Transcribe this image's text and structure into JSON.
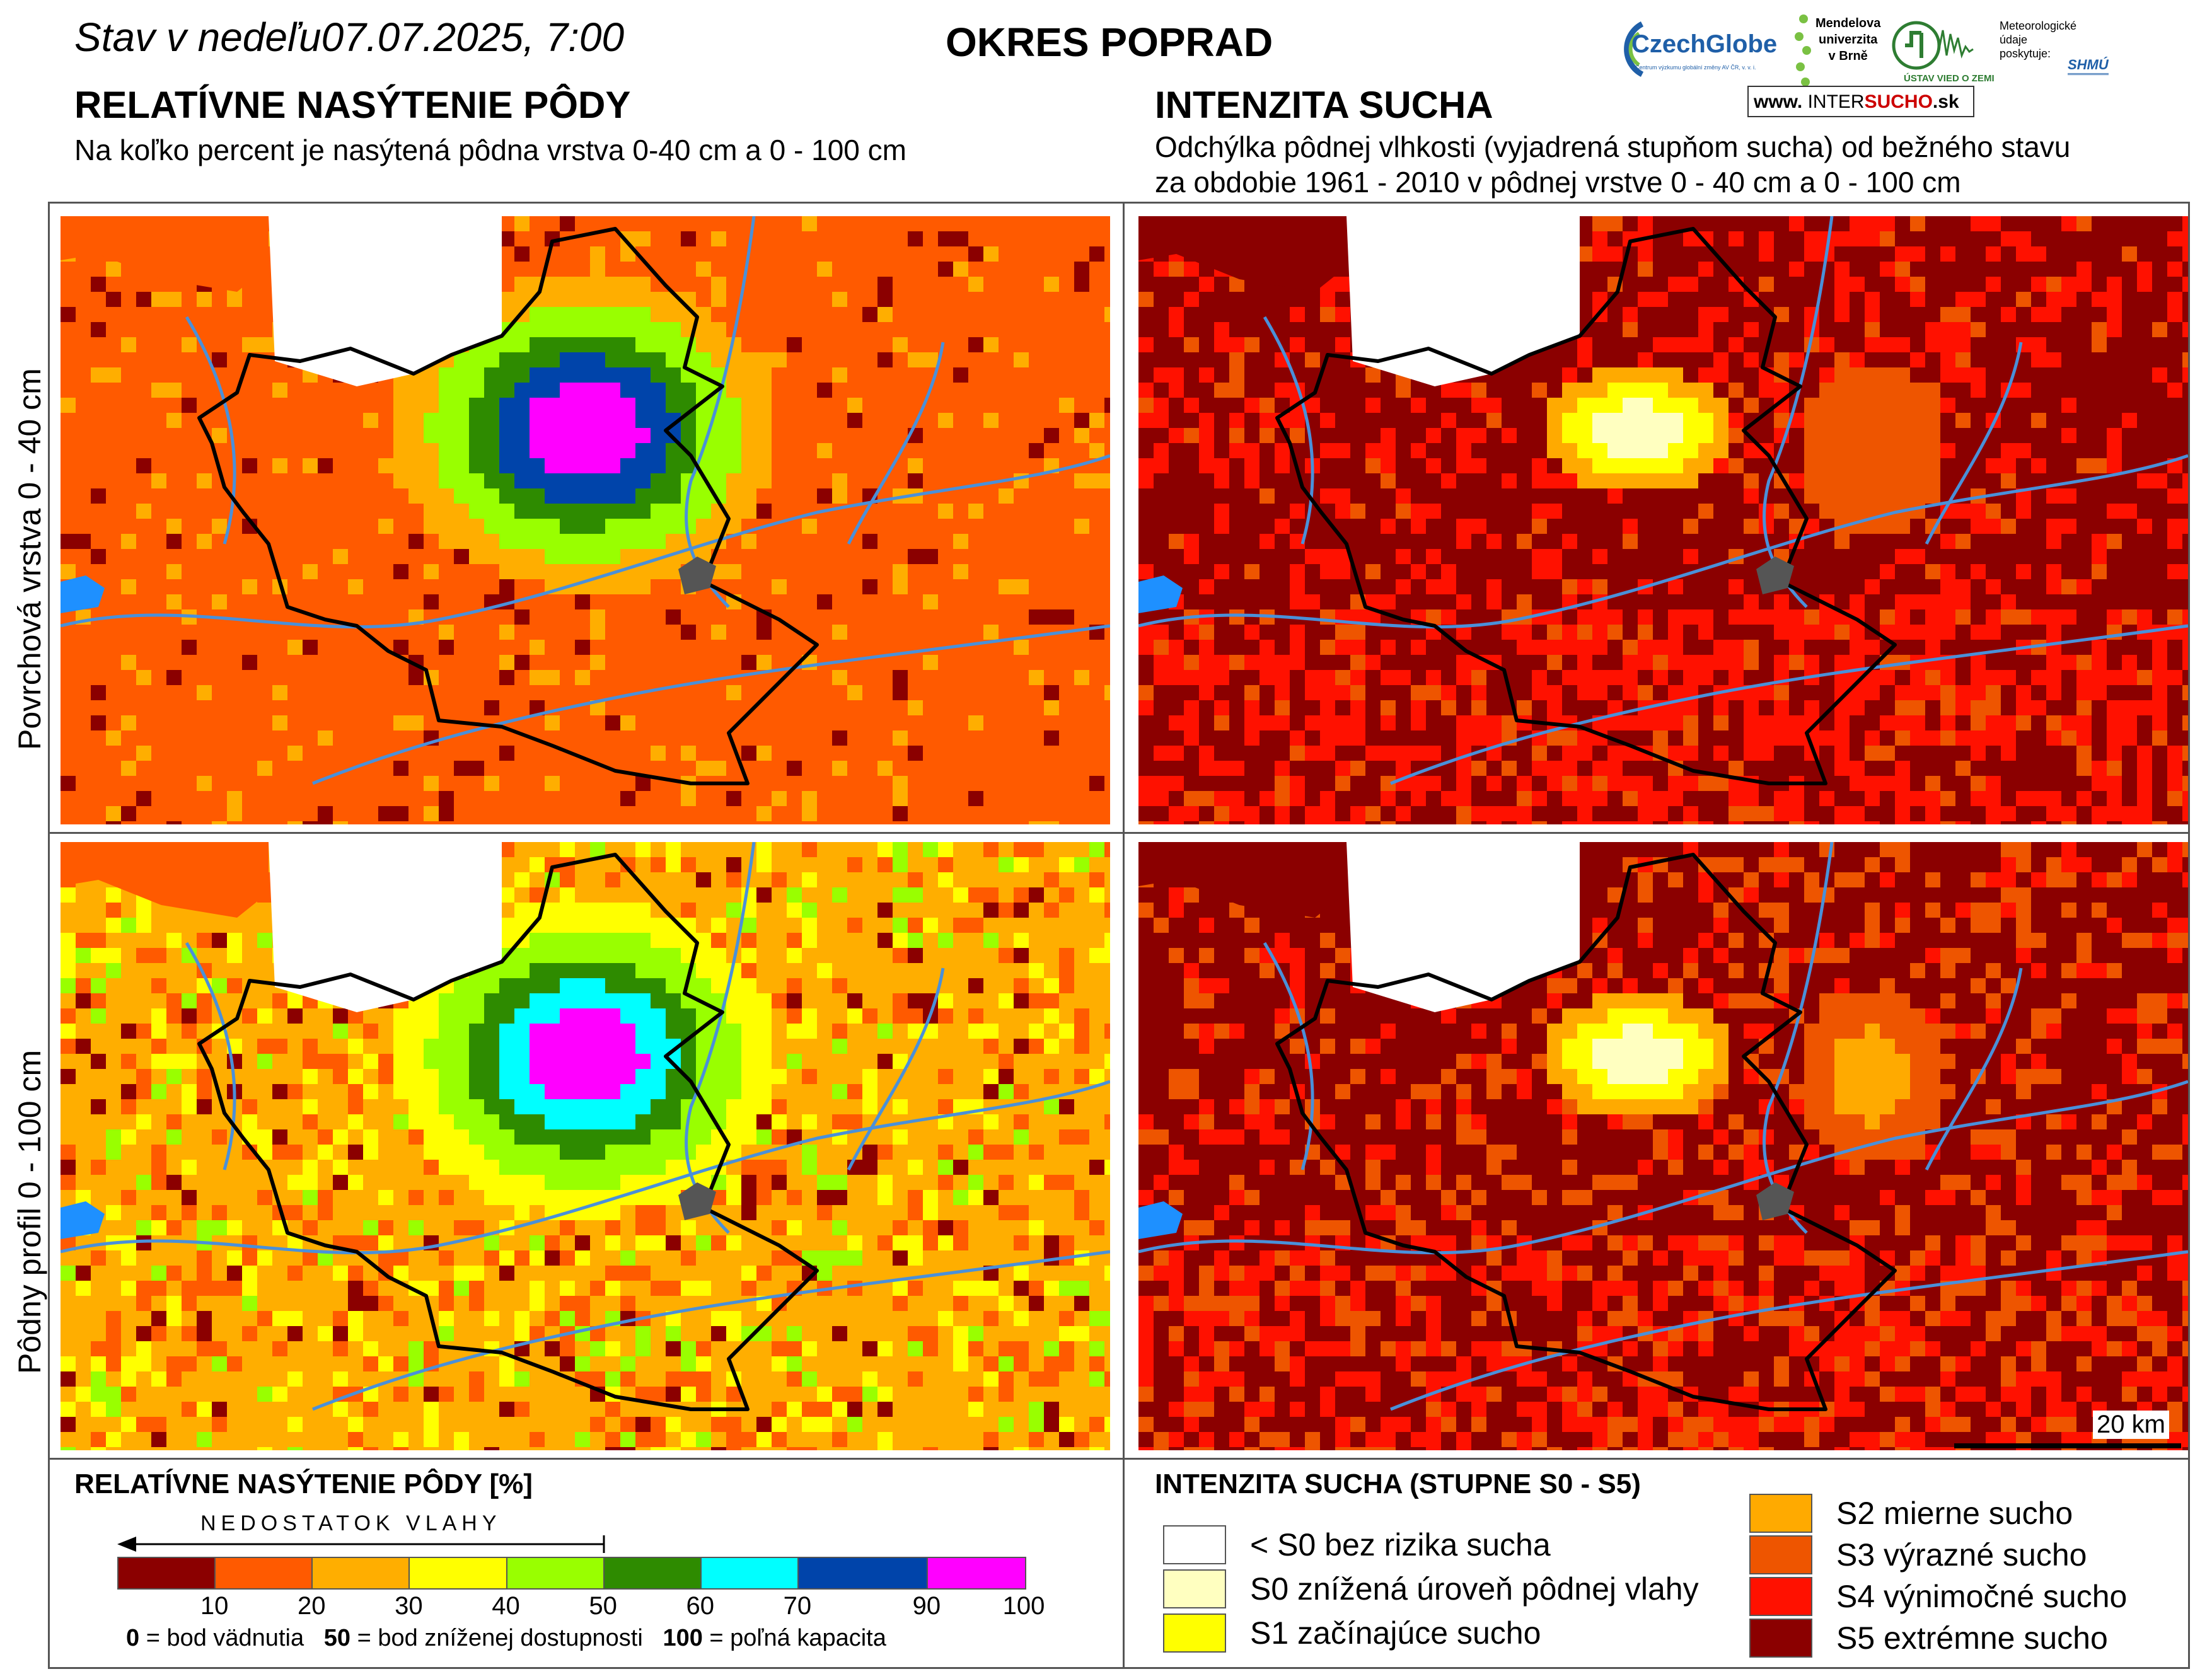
{
  "header": {
    "status_prefix": "Stav v nedeľu",
    "date_time": "07.07.2025, 7:00",
    "district": "OKRES  POPRAD"
  },
  "logos": {
    "czechglobe": "CzechGlobe",
    "czechglobe_sub": "Centrum výzkumu globální změny AV ČR, v. v. i.",
    "mendelu_lines": [
      "Mendelova",
      "univerzita",
      "v Brně"
    ],
    "ustav": "ÚSTAV VIED O ZEMI",
    "meteo_lines": [
      "Meteorologické",
      "údaje",
      "poskytuje:"
    ],
    "shmu": "SHMÚ",
    "intersucho_prefix": "www.",
    "intersucho_a": "INTER",
    "intersucho_b": "SUCHO",
    "intersucho_suffix": ".sk"
  },
  "left_section": {
    "title": "RELATÍVNE NASÝTENIE PÔDY",
    "subtitle": "Na koľko percent je nasýtená pôdna vrstva 0-40 cm a 0 - 100 cm"
  },
  "right_section": {
    "title": "INTENZITA SUCHA",
    "subtitle_line1": "Odchýlka pôdnej vlhkosti (vyjadrená stupňom sucha) od bežného stavu",
    "subtitle_line2": "za obdobie 1961 - 2010 v pôdnej vrstve 0 - 40 cm a 0 - 100 cm"
  },
  "rows": {
    "top_label": "Povrchová vrstva 0 - 40 cm",
    "bottom_label": "Pôdny profil 0 - 100 cm"
  },
  "scale_bar": "20 km",
  "saturation_legend": {
    "title": "RELATÍVNE NASÝTENIE PÔDY [%]",
    "arrow_label": "NEDOSTATOK  VLAHY",
    "colors": [
      "#8b0000",
      "#ff5a00",
      "#ffae00",
      "#ffff00",
      "#99ff00",
      "#2e8b00",
      "#00ffff",
      "#0044aa",
      "#ff00ff"
    ],
    "ticks": [
      "10",
      "20",
      "30",
      "40",
      "50",
      "60",
      "70",
      "90",
      "100"
    ],
    "footnote_parts": [
      {
        "b": "0",
        "t": " = bod vädnutia"
      },
      {
        "b": "50",
        "t": " = bod zníženej dostupnosti"
      },
      {
        "b": "100",
        "t": " = poľná kapacita"
      }
    ]
  },
  "drought_legend": {
    "title": "INTENZITA SUCHA (STUPNE S0 - S5)",
    "items": [
      {
        "label": "< S0 bez rizika sucha",
        "color": "#ffffff"
      },
      {
        "label": "S0 znížená úroveň pôdnej vlahy",
        "color": "#ffffc0"
      },
      {
        "label": "S1 začínajúce sucho",
        "color": "#ffff00"
      },
      {
        "label": "S2 mierne sucho",
        "color": "#ffaa00"
      },
      {
        "label": "S3 výrazné sucho",
        "color": "#ee5500"
      },
      {
        "label": "S4 výnimočné sucho",
        "color": "#ff1100"
      },
      {
        "label": "S5 extrémne sucho",
        "color": "#8b0000"
      }
    ]
  },
  "map_colors": {
    "water": "#1e90ff",
    "river": "#4a90d9",
    "border": "#000000",
    "city": "#555555"
  }
}
